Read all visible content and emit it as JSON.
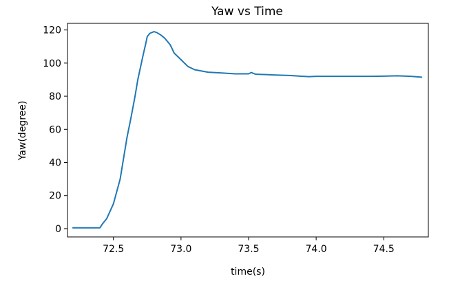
{
  "chart_data": {
    "type": "line",
    "title": "Yaw vs Time",
    "xlabel": "time(s)",
    "ylabel": "Yaw(degree)",
    "xlim": [
      72.16,
      74.83
    ],
    "ylim": [
      -5,
      124
    ],
    "xticks": [
      72.5,
      73.0,
      73.5,
      74.0,
      74.5
    ],
    "xtick_labels": [
      "72.5",
      "73.0",
      "73.5",
      "74.0",
      "74.5"
    ],
    "yticks": [
      0,
      20,
      40,
      60,
      80,
      100,
      120
    ],
    "ytick_labels": [
      "0",
      "20",
      "40",
      "60",
      "80",
      "100",
      "120"
    ],
    "grid": false,
    "series": [
      {
        "color": "#1f77b4",
        "x": [
          72.2,
          72.3,
          72.4,
          72.42,
          72.45,
          72.5,
          72.55,
          72.6,
          72.63,
          72.66,
          72.68,
          72.72,
          72.74,
          72.75,
          72.77,
          72.8,
          72.82,
          72.85,
          72.88,
          72.92,
          72.95,
          73.0,
          73.05,
          73.1,
          73.2,
          73.3,
          73.4,
          73.5,
          73.52,
          73.55,
          73.7,
          73.8,
          73.9,
          73.95,
          74.0,
          74.1,
          74.2,
          74.3,
          74.4,
          74.5,
          74.6,
          74.7,
          74.78
        ],
        "y": [
          0.5,
          0.5,
          0.5,
          3,
          6,
          15,
          30,
          55,
          67,
          80,
          90,
          105,
          112,
          116,
          118,
          119,
          118.5,
          117,
          115,
          111,
          106,
          102,
          98,
          96,
          94.5,
          94,
          93.5,
          93.5,
          94.3,
          93.3,
          92.8,
          92.5,
          92,
          91.8,
          92,
          92,
          92,
          92,
          92,
          92.1,
          92.3,
          92,
          91.5
        ]
      }
    ]
  }
}
